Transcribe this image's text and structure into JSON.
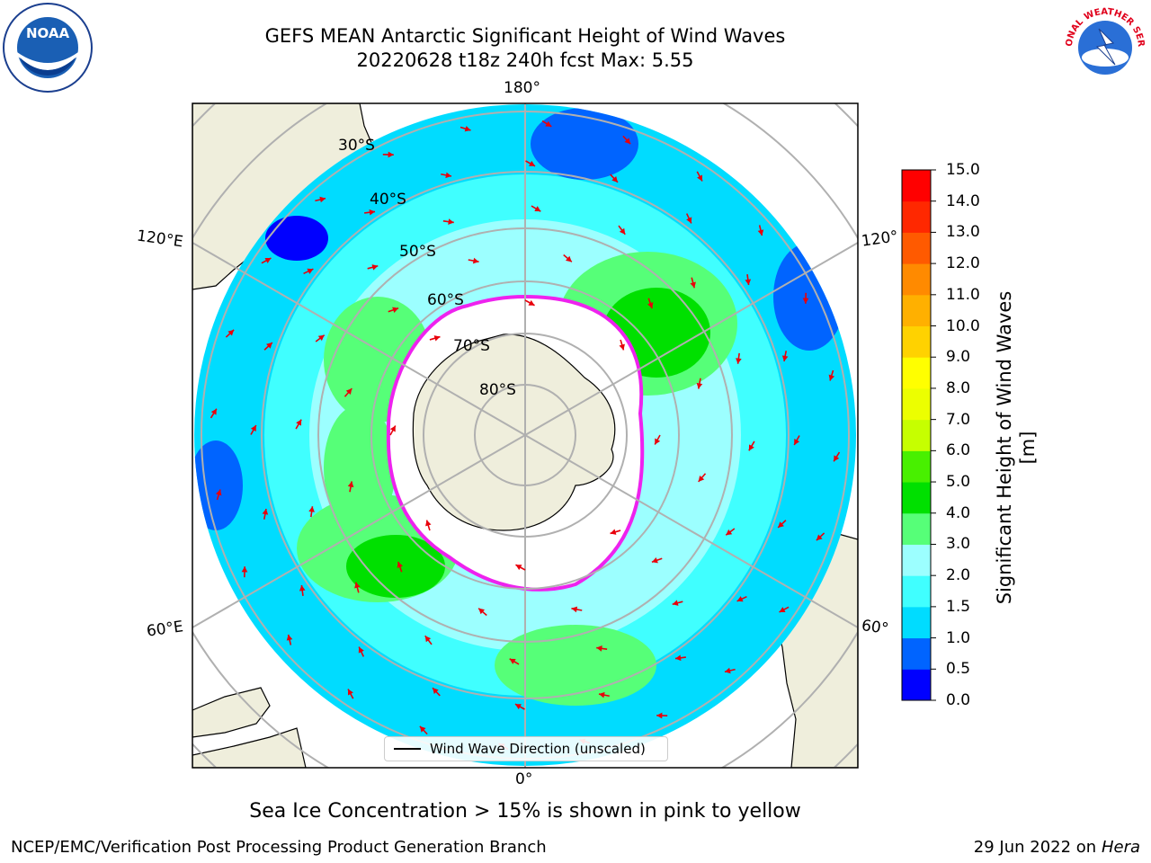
{
  "title": {
    "line1": "GEFS MEAN Antarctic Significant Height of Wind Waves",
    "line2": "20220628 t18z 240h fcst   Max: 5.55"
  },
  "logos": {
    "left": "NOAA",
    "right": "NATIONAL WEATHER SERVICE"
  },
  "map": {
    "projection": "south-polar-stereographic",
    "longitude_labels": {
      "top": "180°",
      "bottom": "0°",
      "upper_left": "120°E",
      "lower_left": "60°E",
      "upper_right": "120°",
      "lower_right": "60°"
    },
    "latitude_labels": [
      "30°S",
      "40°S",
      "50°S",
      "60°S",
      "70°S",
      "80°S"
    ],
    "colors": {
      "land": "#efeedc",
      "ice_free_inner": "#ffffff",
      "arrow": "#e8000b",
      "grid": "#b0b0b0",
      "sea_ice_edge": "#ee22ee"
    },
    "legend": "Wind Wave Direction (unscaled)"
  },
  "colorbar": {
    "label": "Significant Height of Wind Waves [m]",
    "ticks": [
      "0.0",
      "0.5",
      "1.0",
      "1.5",
      "2.0",
      "3.0",
      "4.0",
      "5.0",
      "6.0",
      "7.0",
      "8.0",
      "9.0",
      "10.0",
      "11.0",
      "12.0",
      "13.0",
      "14.0",
      "15.0"
    ],
    "colors": [
      "#0000ff",
      "#0064ff",
      "#00dcff",
      "#40ffff",
      "#9cffff",
      "#56ff78",
      "#00e000",
      "#48f000",
      "#c6ff00",
      "#ecff00",
      "#ffff00",
      "#ffd200",
      "#ffb000",
      "#ff8a00",
      "#ff5a00",
      "#ff2800",
      "#ff0000"
    ]
  },
  "footer": {
    "note": "Sea Ice Concentration > 15% is shown in pink to yellow",
    "left": "NCEP/EMC/Verification Post Processing Product Generation Branch",
    "right_date": "29 Jun 2022 on",
    "right_host": "Hera"
  }
}
